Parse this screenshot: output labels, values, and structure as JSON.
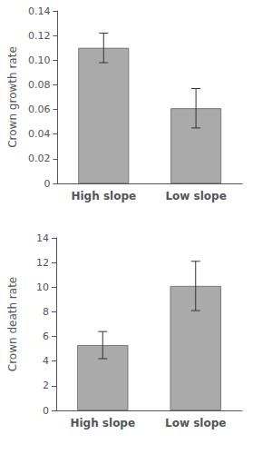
{
  "chart_data": [
    {
      "type": "bar",
      "categories": [
        "High slope",
        "Low slope"
      ],
      "values": [
        0.11,
        0.061
      ],
      "errors": [
        0.012,
        0.016
      ],
      "ylabel": "Crown growth rate",
      "ylim": [
        0,
        0.14
      ],
      "yticks": [
        0,
        0.02,
        0.04,
        0.06,
        0.08,
        {
          "value": 0.1,
          "label": "0.10"
        },
        0.12,
        0.14
      ],
      "color": "#aaaaaa",
      "grid": false
    },
    {
      "type": "bar",
      "categories": [
        "High slope",
        "Low slope"
      ],
      "values": [
        5.3,
        10.1
      ],
      "errors": [
        1.1,
        2.0
      ],
      "ylabel": "Crown death rate",
      "ylim": [
        0,
        14
      ],
      "yticks": [
        0,
        2,
        4,
        6,
        8,
        10,
        12,
        14
      ],
      "color": "#aaaaaa",
      "grid": false
    }
  ]
}
